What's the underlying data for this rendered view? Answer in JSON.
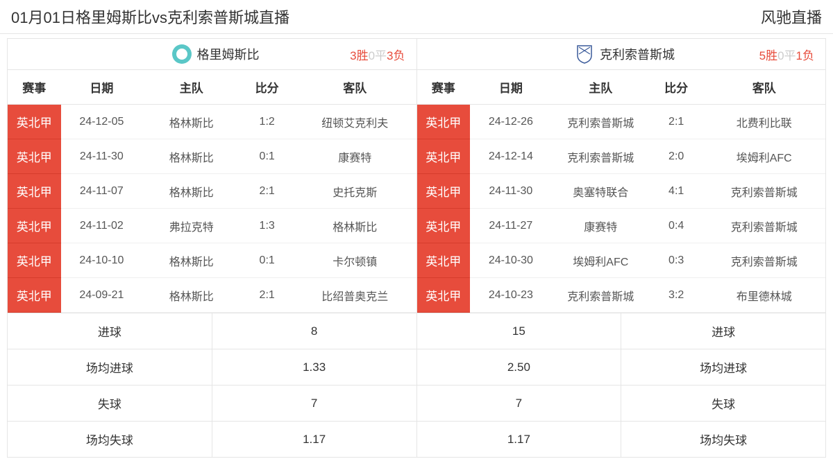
{
  "header": {
    "title": "01月01日格里姆斯比vs克利索普斯城直播",
    "site_name": "风驰直播"
  },
  "columns": {
    "league": "赛事",
    "date": "日期",
    "home": "主队",
    "score": "比分",
    "away": "客队"
  },
  "left_team": {
    "name": "格里姆斯比",
    "record": {
      "wins": "3",
      "win_unit": "胜",
      "draws": "0",
      "draw_unit": "平",
      "losses": "3",
      "loss_unit": "负"
    },
    "matches": [
      {
        "league": "英北甲",
        "date": "24-12-05",
        "home": "格林斯比",
        "score": "1:2",
        "away": "纽顿艾克利夫"
      },
      {
        "league": "英北甲",
        "date": "24-11-30",
        "home": "格林斯比",
        "score": "0:1",
        "away": "康赛特"
      },
      {
        "league": "英北甲",
        "date": "24-11-07",
        "home": "格林斯比",
        "score": "2:1",
        "away": "史托克斯"
      },
      {
        "league": "英北甲",
        "date": "24-11-02",
        "home": "弗拉克特",
        "score": "1:3",
        "away": "格林斯比"
      },
      {
        "league": "英北甲",
        "date": "24-10-10",
        "home": "格林斯比",
        "score": "0:1",
        "away": "卡尔顿镇"
      },
      {
        "league": "英北甲",
        "date": "24-09-21",
        "home": "格林斯比",
        "score": "2:1",
        "away": "比绍普奥克兰"
      }
    ]
  },
  "right_team": {
    "name": "克利索普斯城",
    "record": {
      "wins": "5",
      "win_unit": "胜",
      "draws": "0",
      "draw_unit": "平",
      "losses": "1",
      "loss_unit": "负"
    },
    "matches": [
      {
        "league": "英北甲",
        "date": "24-12-26",
        "home": "克利索普斯城",
        "score": "2:1",
        "away": "北费利比联"
      },
      {
        "league": "英北甲",
        "date": "24-12-14",
        "home": "克利索普斯城",
        "score": "2:0",
        "away": "埃姆利AFC"
      },
      {
        "league": "英北甲",
        "date": "24-11-30",
        "home": "奥塞特联合",
        "score": "4:1",
        "away": "克利索普斯城"
      },
      {
        "league": "英北甲",
        "date": "24-11-27",
        "home": "康赛特",
        "score": "0:4",
        "away": "克利索普斯城"
      },
      {
        "league": "英北甲",
        "date": "24-10-30",
        "home": "埃姆利AFC",
        "score": "0:3",
        "away": "克利索普斯城"
      },
      {
        "league": "英北甲",
        "date": "24-10-23",
        "home": "克利索普斯城",
        "score": "3:2",
        "away": "布里德林城"
      }
    ]
  },
  "summary": {
    "rows": [
      {
        "left_label": "进球",
        "left_value": "8",
        "right_value": "15",
        "right_label": "进球"
      },
      {
        "left_label": "场均进球",
        "left_value": "1.33",
        "right_value": "2.50",
        "right_label": "场均进球"
      },
      {
        "left_label": "失球",
        "left_value": "7",
        "right_value": "7",
        "right_label": "失球"
      },
      {
        "left_label": "场均失球",
        "left_value": "1.17",
        "right_value": "1.17",
        "right_label": "场均失球"
      }
    ]
  },
  "colors": {
    "accent_red": "#e74c3c",
    "dim_gray": "#cccccc",
    "border": "#e5e5e5",
    "logo_teal": "#5ac7c7"
  }
}
